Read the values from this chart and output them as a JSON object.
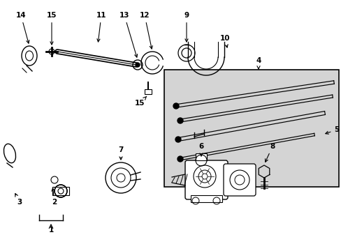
{
  "bg_color": "#ffffff",
  "line_color": "#000000",
  "box_bg": "#d4d4d4",
  "fig_width": 4.89,
  "fig_height": 3.6,
  "dpi": 100,
  "fs": 7.5,
  "fw": "bold"
}
